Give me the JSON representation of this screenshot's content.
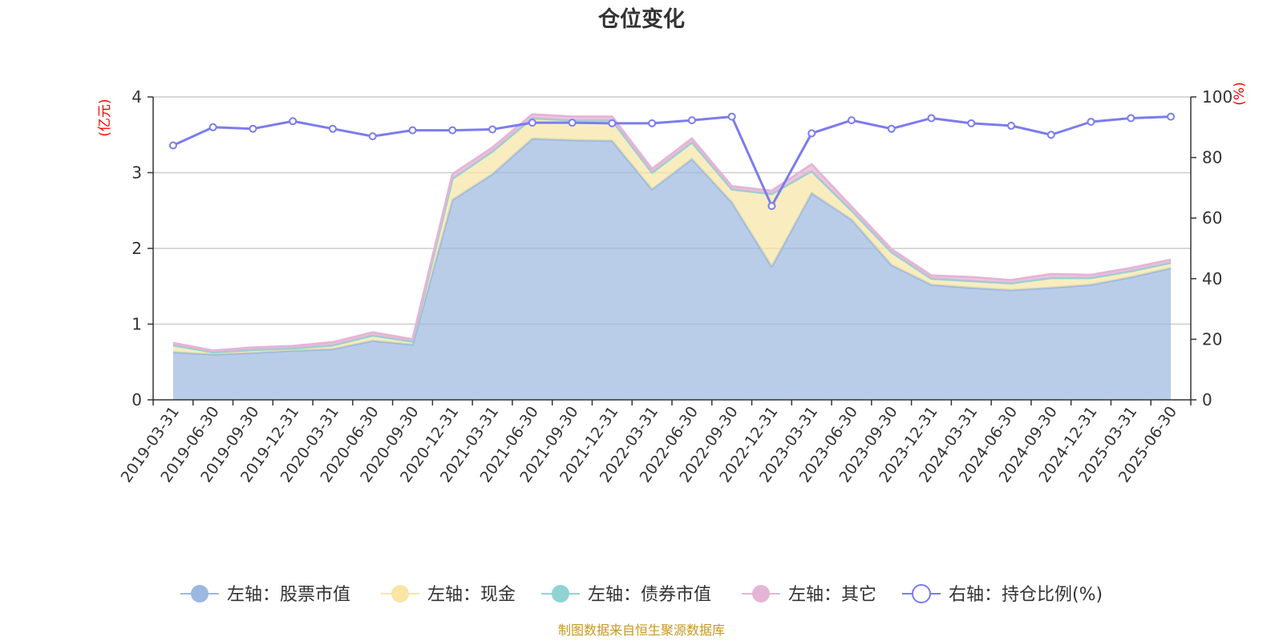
{
  "chart_data": {
    "type": "area",
    "title": "仓位变化",
    "left_axis_unit": "(亿元)",
    "right_axis_unit": "(%)",
    "ylim_left": [
      0,
      4
    ],
    "ylim_right": [
      0,
      100
    ],
    "yticks_left": [
      "0",
      "1",
      "2",
      "3",
      "4"
    ],
    "yticks_right": [
      "0",
      "20",
      "40",
      "60",
      "80",
      "100"
    ],
    "grid": true,
    "stacked": true,
    "legend_position": "bottom",
    "x": [
      "2019-03-31",
      "2019-06-30",
      "2019-09-30",
      "2019-12-31",
      "2020-03-31",
      "2020-06-30",
      "2020-09-30",
      "2020-12-31",
      "2021-03-31",
      "2021-06-30",
      "2021-09-30",
      "2021-12-31",
      "2022-03-31",
      "2022-06-30",
      "2022-09-30",
      "2022-12-31",
      "2023-03-31",
      "2023-06-30",
      "2023-09-30",
      "2023-12-31",
      "2024-03-31",
      "2024-06-30",
      "2024-09-30",
      "2024-12-31",
      "2025-03-31",
      "2025-06-30"
    ],
    "series": [
      {
        "name": "左轴：股票市值",
        "axis": "left",
        "color": "#9bb8e0",
        "values": [
          0.63,
          0.6,
          0.62,
          0.65,
          0.67,
          0.78,
          0.73,
          2.64,
          2.98,
          3.45,
          3.43,
          3.42,
          2.78,
          3.18,
          2.61,
          1.76,
          2.73,
          2.38,
          1.78,
          1.52,
          1.48,
          1.45,
          1.48,
          1.52,
          1.62,
          1.74
        ]
      },
      {
        "name": "左轴：现金",
        "axis": "left",
        "color": "#f7e6a4",
        "values": [
          0.09,
          0.03,
          0.04,
          0.03,
          0.05,
          0.07,
          0.04,
          0.28,
          0.3,
          0.27,
          0.26,
          0.27,
          0.22,
          0.22,
          0.17,
          0.96,
          0.29,
          0.12,
          0.17,
          0.08,
          0.09,
          0.09,
          0.13,
          0.09,
          0.08,
          0.07
        ]
      },
      {
        "name": "左轴：债券市值",
        "axis": "left",
        "color": "#8fd3d3",
        "values": [
          0,
          0,
          0,
          0,
          0,
          0,
          0,
          0,
          0,
          0,
          0,
          0,
          0,
          0,
          0,
          0,
          0,
          0,
          0,
          0,
          0,
          0,
          0,
          0,
          0,
          0
        ]
      },
      {
        "name": "左轴：其它",
        "axis": "left",
        "color": "#e6b4d6",
        "values": [
          0.03,
          0.02,
          0.03,
          0.03,
          0.04,
          0.04,
          0.03,
          0.06,
          0.05,
          0.05,
          0.05,
          0.05,
          0.05,
          0.05,
          0.04,
          0.04,
          0.09,
          0.05,
          0.04,
          0.04,
          0.05,
          0.04,
          0.05,
          0.04,
          0.04,
          0.04
        ]
      },
      {
        "name": "右轴：持仓比例(%)",
        "axis": "right",
        "color": "#7b7cee",
        "values": [
          84,
          90,
          89.5,
          92,
          89.5,
          87,
          89,
          89,
          89.3,
          91.5,
          91.5,
          91.3,
          91.3,
          92.3,
          93.5,
          64,
          88,
          92.3,
          89.5,
          93,
          91.3,
          90.5,
          87.5,
          91.8,
          93,
          93.5
        ]
      }
    ]
  },
  "footer": {
    "source": "制图数据来自恒生聚源数据库"
  }
}
